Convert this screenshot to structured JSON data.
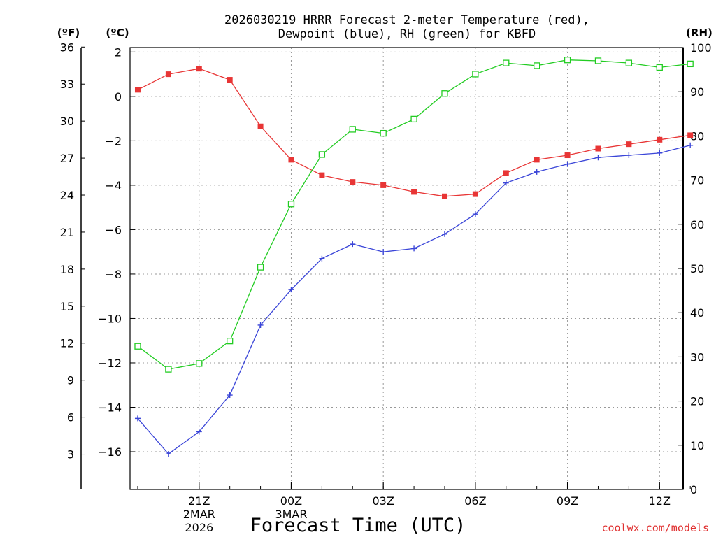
{
  "chart_data": {
    "type": "line",
    "title_line1": "2026030219 HRRR Forecast 2-meter Temperature (red),",
    "title_line2": "Dewpoint (blue), RH (green) for KBFD",
    "xlabel": "Forecast Time (UTC)",
    "credit": "coolwx.com/models",
    "left_outer_axis": {
      "unit_label": "(ºF)",
      "ticks": [
        3,
        6,
        9,
        12,
        15,
        18,
        21,
        24,
        27,
        30,
        33,
        36
      ]
    },
    "left_inner_axis": {
      "unit_label": "(ºC)",
      "ylim": [
        -17.7,
        2.2
      ],
      "ticks": [
        -16,
        -14,
        -12,
        -10,
        -8,
        -6,
        -4,
        -2,
        0,
        2
      ]
    },
    "right_axis": {
      "unit_label": "(RH)",
      "ylim": [
        0,
        100
      ],
      "ticks": [
        0,
        10,
        20,
        30,
        40,
        50,
        60,
        70,
        80,
        90,
        100
      ]
    },
    "x_tick_labels": [
      {
        "hour": 21,
        "lines": [
          "21Z",
          "2MAR",
          "2026"
        ]
      },
      {
        "hour": 24,
        "lines": [
          "00Z",
          "3MAR"
        ]
      },
      {
        "hour": 27,
        "lines": [
          "03Z"
        ]
      },
      {
        "hour": 30,
        "lines": [
          "06Z"
        ]
      },
      {
        "hour": 33,
        "lines": [
          "09Z"
        ]
      },
      {
        "hour": 36,
        "lines": [
          "12Z"
        ]
      }
    ],
    "x_hours": [
      19,
      20,
      21,
      22,
      23,
      24,
      25,
      26,
      27,
      28,
      29,
      30,
      31,
      32,
      33,
      34,
      35,
      36,
      37
    ],
    "series": [
      {
        "name": "Temperature",
        "color": "#e83535",
        "marker": "filled-square",
        "axis": "C",
        "values": [
          0.3,
          1.0,
          1.25,
          0.75,
          -1.35,
          -2.85,
          -3.55,
          -3.85,
          -4.0,
          -4.3,
          -4.5,
          -4.4,
          -3.45,
          -2.85,
          -2.65,
          -2.35,
          -2.15,
          -1.95,
          -1.75
        ]
      },
      {
        "name": "Dewpoint",
        "color": "#3a45d8",
        "marker": "plus",
        "axis": "C",
        "values": [
          -14.5,
          -16.1,
          -15.1,
          -13.45,
          -10.3,
          -8.7,
          -7.3,
          -6.65,
          -7.0,
          -6.85,
          -6.2,
          -5.3,
          -3.9,
          -3.4,
          -3.05,
          -2.75,
          -2.65,
          -2.55,
          -2.2
        ]
      },
      {
        "name": "RH",
        "color": "#22cc22",
        "marker": "open-square",
        "axis": "RH",
        "values": [
          32.4,
          27.2,
          28.5,
          33.6,
          50.3,
          64.6,
          75.8,
          81.5,
          80.6,
          83.8,
          89.6,
          94.0,
          96.5,
          95.9,
          97.2,
          97.0,
          96.5,
          95.5,
          96.3
        ]
      }
    ]
  }
}
